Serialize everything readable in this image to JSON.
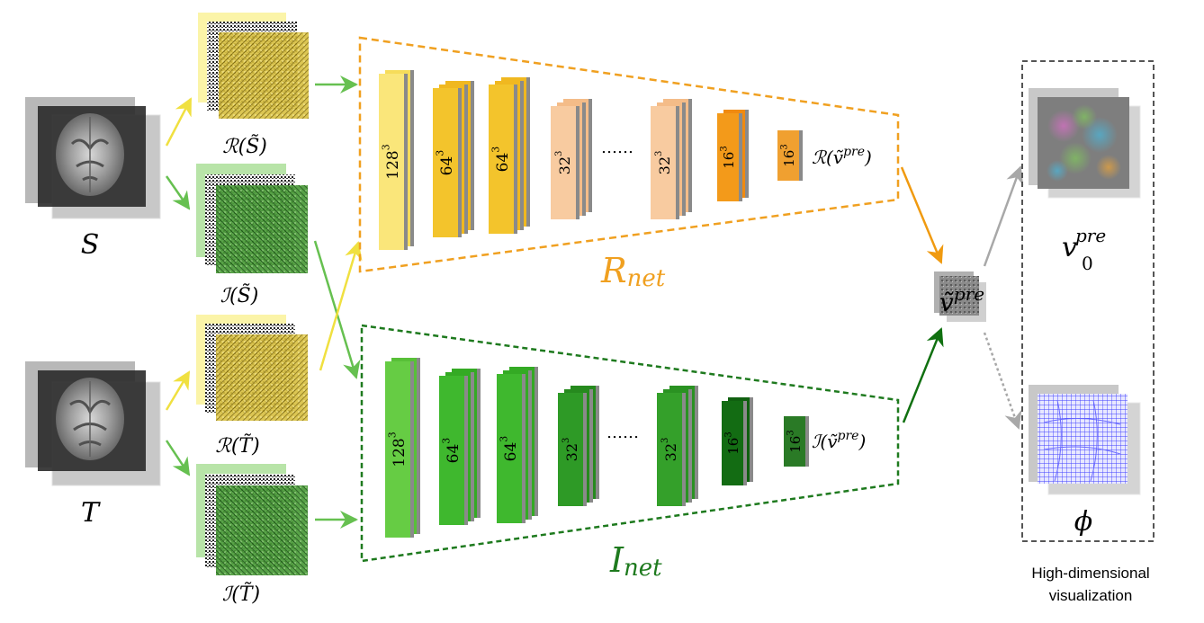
{
  "inputs": {
    "source": {
      "label": "S"
    },
    "target": {
      "label": "T"
    }
  },
  "feature_maps": {
    "real_S": "ℛ(S̃)",
    "imag_S": "ℐ(S̃)",
    "real_T": "ℛ(T̃)",
    "imag_T": "ℐ(T̃)"
  },
  "rnet": {
    "name": "R",
    "sub": "net",
    "color": "#f0a020",
    "layers": [
      "128",
      "64",
      "64",
      "32",
      "32",
      "16",
      "16"
    ],
    "exp": "3",
    "ellipsis": "……",
    "output": "ℛ(ṽ",
    "output_sup": "pre",
    "output_close": ")"
  },
  "inet": {
    "name": "I",
    "sub": "net",
    "color": "#1e7a1e",
    "layers": [
      "128",
      "64",
      "64",
      "32",
      "32",
      "16",
      "16"
    ],
    "exp": "3",
    "ellipsis": "……",
    "output": "ℐ(ṽ",
    "output_sup": "pre",
    "output_close": ")"
  },
  "combined": {
    "label": "ṽ",
    "sup": "pre"
  },
  "outputs": {
    "velocity": {
      "label": "v",
      "sup": "pre",
      "sub": "0"
    },
    "phi": {
      "label": "ϕ"
    }
  },
  "caption": {
    "line1": "High-dimensional",
    "line2": "visualization"
  }
}
